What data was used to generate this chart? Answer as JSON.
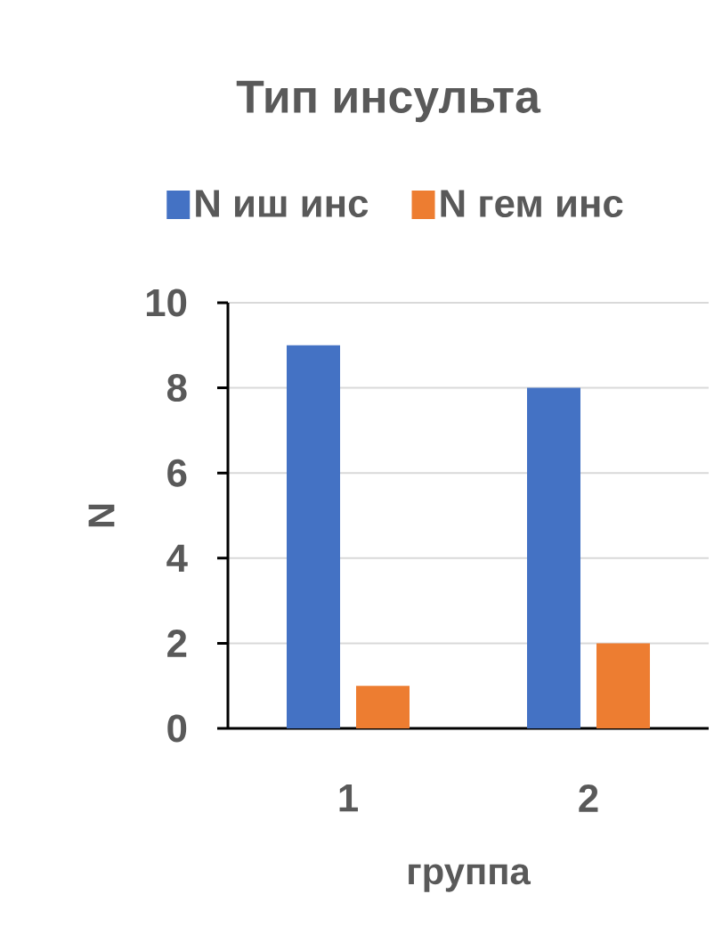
{
  "chart_data": {
    "type": "bar",
    "title": "Тип инсульта",
    "xlabel": "группа",
    "ylabel": "N",
    "categories": [
      "1",
      "2"
    ],
    "series": [
      {
        "name": "N иш инс",
        "color": "#4472c4",
        "values": [
          9,
          8
        ]
      },
      {
        "name": "N гем инс",
        "color": "#ed7d31",
        "values": [
          1,
          2
        ]
      }
    ],
    "ylim": [
      0,
      10
    ],
    "yticks": [
      0,
      2,
      4,
      6,
      8,
      10
    ],
    "grid": "y",
    "legend": "top"
  }
}
